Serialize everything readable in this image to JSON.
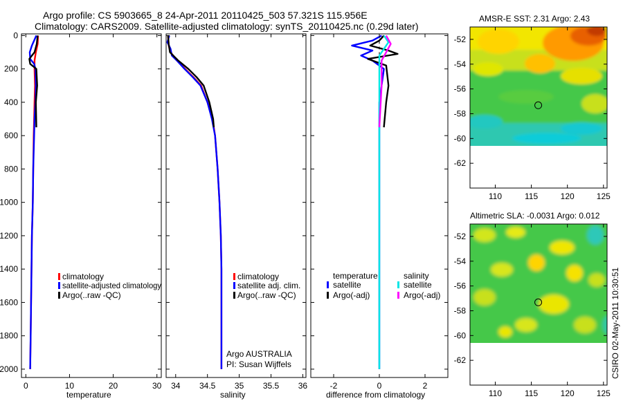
{
  "header": {
    "line1": "Argo profile: CS 5903665_8 24-Apr-2011 20110425_503 57.321S 115.956E",
    "line2": "Climatology: CARS2009. Satellite-adjusted climatology: synTS_20110425.nc (0.29d later)"
  },
  "footer": {
    "credit": "CSIRO 02-May-2011 10:30:51"
  },
  "colors": {
    "climatology": "#ff0000",
    "satellite": "#0000ff",
    "argo": "#000000",
    "sal_satellite": "#00e5e5",
    "sal_argo": "#ff00ff"
  },
  "chart_data": [
    {
      "type": "line",
      "id": "temperature",
      "xlabel": "temperature",
      "ylabel": "",
      "xlim": [
        -1,
        31
      ],
      "ylim": [
        2050,
        -10
      ],
      "xticks": [
        "0",
        "10",
        "20",
        "30"
      ],
      "yticks": [
        "0",
        "200",
        "400",
        "600",
        "800",
        "1000",
        "1200",
        "1400",
        "1600",
        "1800",
        "2000"
      ],
      "series": [
        {
          "name": "climatology",
          "color": "#ff0000",
          "points": [
            [
              2.8,
              0
            ],
            [
              2.7,
              50
            ],
            [
              2.3,
              100
            ],
            [
              2.0,
              150
            ],
            [
              2.0,
              200
            ],
            [
              2.1,
              300
            ],
            [
              2.0,
              400
            ],
            [
              1.9,
              500
            ],
            [
              1.8,
              600
            ],
            [
              1.7,
              800
            ],
            [
              1.6,
              1000
            ],
            [
              1.4,
              1200
            ],
            [
              1.3,
              1400
            ],
            [
              1.2,
              1600
            ],
            [
              1.1,
              1800
            ],
            [
              1.0,
              2000
            ]
          ]
        },
        {
          "name": "satellite-adjusted climatology",
          "color": "#0000ff",
          "points": [
            [
              2.4,
              0
            ],
            [
              1.4,
              60
            ],
            [
              0.9,
              100
            ],
            [
              1.0,
              140
            ],
            [
              1.9,
              170
            ],
            [
              2.2,
              200
            ],
            [
              2.3,
              300
            ],
            [
              2.2,
              400
            ],
            [
              2.0,
              500
            ],
            [
              1.9,
              600
            ],
            [
              1.7,
              800
            ],
            [
              1.6,
              1000
            ],
            [
              1.4,
              1200
            ],
            [
              1.3,
              1400
            ],
            [
              1.2,
              1600
            ],
            [
              1.1,
              1800
            ],
            [
              1.0,
              2000
            ]
          ]
        },
        {
          "name": "Argo(..raw -QC)",
          "color": "#000000",
          "points": [
            [
              2.7,
              0
            ],
            [
              2.5,
              50
            ],
            [
              2.0,
              100
            ],
            [
              0.8,
              140
            ],
            [
              1.0,
              170
            ],
            [
              2.4,
              200
            ],
            [
              2.6,
              300
            ],
            [
              2.3,
              400
            ],
            [
              2.4,
              550
            ]
          ]
        }
      ],
      "legend": [
        "climatology",
        "satellite-adjusted climatology",
        "Argo(..raw -QC)"
      ]
    },
    {
      "type": "line",
      "id": "salinity",
      "xlabel": "salinity",
      "ylabel": "",
      "xlim": [
        33.85,
        36.05
      ],
      "ylim": [
        2050,
        -10
      ],
      "xticks": [
        "34",
        "34.5",
        "35",
        "35.5",
        "36"
      ],
      "series": [
        {
          "name": "climatology",
          "color": "#ff0000",
          "points": [
            [
              33.88,
              0
            ],
            [
              33.89,
              60
            ],
            [
              33.92,
              100
            ],
            [
              34.02,
              150
            ],
            [
              34.15,
              200
            ],
            [
              34.28,
              250
            ],
            [
              34.4,
              300
            ],
            [
              34.5,
              400
            ],
            [
              34.58,
              500
            ],
            [
              34.62,
              600
            ],
            [
              34.66,
              800
            ],
            [
              34.69,
              1000
            ],
            [
              34.71,
              1200
            ],
            [
              34.72,
              1400
            ],
            [
              34.72,
              1600
            ],
            [
              34.72,
              1800
            ],
            [
              34.72,
              2000
            ]
          ]
        },
        {
          "name": "satellite adj. clim.",
          "color": "#0000ff",
          "points": [
            [
              33.9,
              0
            ],
            [
              33.87,
              40
            ],
            [
              33.92,
              80
            ],
            [
              33.94,
              120
            ],
            [
              34.02,
              150
            ],
            [
              34.14,
              200
            ],
            [
              34.27,
              250
            ],
            [
              34.39,
              300
            ],
            [
              34.5,
              400
            ],
            [
              34.57,
              500
            ],
            [
              34.62,
              600
            ],
            [
              34.66,
              800
            ],
            [
              34.69,
              1000
            ],
            [
              34.71,
              1200
            ],
            [
              34.72,
              1400
            ],
            [
              34.72,
              1600
            ],
            [
              34.72,
              1800
            ],
            [
              34.72,
              2000
            ]
          ]
        },
        {
          "name": "Argo(..raw -QC)",
          "color": "#000000",
          "points": [
            [
              33.88,
              0
            ],
            [
              33.89,
              50
            ],
            [
              33.91,
              100
            ],
            [
              34.04,
              150
            ],
            [
              34.2,
              200
            ],
            [
              34.33,
              250
            ],
            [
              34.44,
              300
            ],
            [
              34.53,
              400
            ],
            [
              34.59,
              500
            ],
            [
              34.6,
              550
            ]
          ]
        }
      ],
      "legend": [
        "climatology",
        "satellite adj. clim.",
        "Argo(..raw -QC)"
      ],
      "annotation": [
        "Argo AUSTRALIA",
        "PI: Susan Wijffels"
      ]
    },
    {
      "type": "line",
      "id": "difference",
      "xlabel": "difference from climatology",
      "ylabel": "",
      "xlim": [
        -3,
        3
      ],
      "ylim": [
        2050,
        -10
      ],
      "xticks": [
        "-2",
        "0",
        "2"
      ],
      "series": [
        {
          "name": "temperature satellite",
          "color": "#0000ff",
          "points": [
            [
              0.1,
              0
            ],
            [
              -0.3,
              30
            ],
            [
              -1.2,
              60
            ],
            [
              -0.3,
              90
            ],
            [
              -0.8,
              120
            ],
            [
              -0.3,
              150
            ],
            [
              0.2,
              200
            ],
            [
              0.1,
              300
            ],
            [
              0.0,
              400
            ],
            [
              0.0,
              500
            ],
            [
              0.0,
              2000
            ]
          ]
        },
        {
          "name": "temperature Argo(-adj)",
          "color": "#000000",
          "points": [
            [
              0.2,
              0
            ],
            [
              0.0,
              30
            ],
            [
              -0.4,
              60
            ],
            [
              0.4,
              90
            ],
            [
              0.8,
              110
            ],
            [
              -0.5,
              140
            ],
            [
              0.3,
              180
            ],
            [
              0.4,
              300
            ],
            [
              0.3,
              400
            ],
            [
              0.2,
              550
            ]
          ]
        },
        {
          "name": "salinity satellite",
          "color": "#00e5e5",
          "points": [
            [
              0.2,
              0
            ],
            [
              0.4,
              40
            ],
            [
              0.2,
              80
            ],
            [
              0.0,
              120
            ],
            [
              0.0,
              200
            ],
            [
              0.0,
              400
            ],
            [
              0.0,
              600
            ],
            [
              0.0,
              2000
            ]
          ]
        },
        {
          "name": "salinity Argo(-adj)",
          "color": "#ff00ff",
          "points": [
            [
              0.3,
              0
            ],
            [
              0.5,
              50
            ],
            [
              0.3,
              100
            ],
            [
              0.1,
              150
            ],
            [
              0.1,
              300
            ],
            [
              0.0,
              550
            ]
          ]
        }
      ],
      "legend_headers": [
        "temperature",
        "salinity"
      ],
      "legend": [
        "satellite",
        "Argo(-adj)",
        "satellite",
        "Argo(-adj)"
      ]
    },
    {
      "type": "heatmap",
      "id": "sst-map",
      "title": "AMSR-E SST: 2.31 Argo: 2.43",
      "xlim": [
        106.5,
        125.5
      ],
      "ylim": [
        -64,
        -51
      ],
      "xticks": [
        "110",
        "115",
        "120",
        "125"
      ],
      "yticks": [
        "-52",
        "-54",
        "-56",
        "-58",
        "-60",
        "-62"
      ],
      "data_extent_lat": [
        -60,
        -51
      ],
      "marker": {
        "lon": 115.956,
        "lat": -57.321
      }
    },
    {
      "type": "heatmap",
      "id": "sla-map",
      "title": "Altimetric SLA: -0.0031 Argo: 0.012",
      "xlim": [
        106.5,
        125.5
      ],
      "ylim": [
        -64,
        -51
      ],
      "xticks": [
        "110",
        "115",
        "120",
        "125"
      ],
      "yticks": [
        "-52",
        "-54",
        "-56",
        "-58",
        "-60",
        "-62"
      ],
      "data_extent_lat": [
        -60,
        -51
      ],
      "marker": {
        "lon": 115.956,
        "lat": -57.321
      }
    }
  ]
}
